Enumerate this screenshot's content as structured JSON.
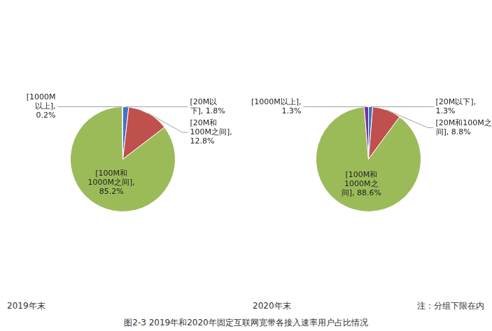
{
  "title": "图2-3    2019年和2020年固定互联网宽带各接入速率用户占比情况",
  "chart_data": [
    {
      "type": "pie",
      "values": [
        1.8,
        12.8,
        85.2,
        0.2
      ],
      "value_labels": [
        "[20M以\n下], 1.8%",
        "[20M和\n100M之间],\n12.8%",
        "[100M和\n1000M之间],\n85.2%",
        "[1000M\n以上],\n0.2%"
      ],
      "colors": [
        "#4472c4",
        "#c0504d",
        "#9bbb59",
        "#4472c4"
      ],
      "data_labels": true,
      "annotations": [
        "2019年末"
      ]
    },
    {
      "type": "pie",
      "values": [
        1.3,
        8.8,
        88.6,
        1.3
      ],
      "value_labels": [
        "[20M以下],\n1.3%",
        "[20M和100M之\n间], 8.8%",
        "[100M和\n1000M之\n间], 88.6%",
        "[1000M以上],\n1.3%"
      ],
      "colors": [
        "#4472c4",
        "#c0504d",
        "#9bbb59",
        "#7030a0"
      ],
      "data_labels": true,
      "annotations": [
        "2020年末",
        "注：分组下限在内"
      ]
    }
  ]
}
